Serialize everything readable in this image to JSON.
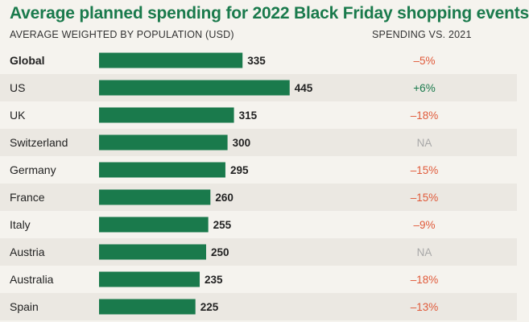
{
  "chart_data": {
    "type": "bar",
    "orientation": "horizontal",
    "title": "Average planned spending for 2022 Black Friday shopping events",
    "subtitle": "AVERAGE WEIGHTED BY POPULATION (USD)",
    "change_header": "SPENDING VS. 2021",
    "categories": [
      "Global",
      "US",
      "UK",
      "Switzerland",
      "Germany",
      "France",
      "Italy",
      "Austria",
      "Australia",
      "Spain"
    ],
    "values": [
      335,
      445,
      315,
      300,
      295,
      260,
      255,
      250,
      235,
      225
    ],
    "value_labels": [
      "335",
      "445",
      "315",
      "300",
      "295",
      "260",
      "255",
      "250",
      "235",
      "225"
    ],
    "change_labels": [
      "–5%",
      "+6%",
      "–18%",
      "NA",
      "–15%",
      "–15%",
      "–9%",
      "NA",
      "–18%",
      "–13%"
    ],
    "emphasized_category": "Global",
    "colors": {
      "bar": "#1a7a4c",
      "row_alt": "#ebe8e2",
      "negative": "#e05a3a",
      "positive": "#1a7a4c",
      "na": "#a8a8a8",
      "title": "#1a7a4c"
    },
    "grid": false,
    "legend": false
  }
}
